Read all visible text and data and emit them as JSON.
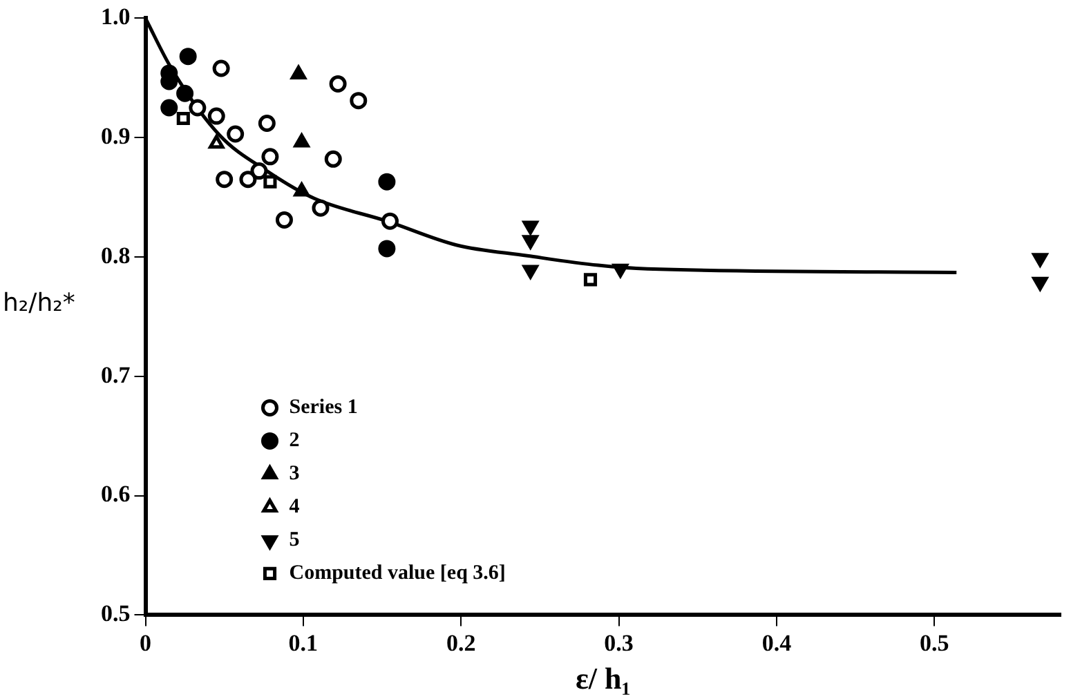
{
  "chart_data": {
    "type": "scatter",
    "xlabel": "ε/ h₁",
    "ylabel": "h₂/h₂*",
    "xlim": [
      0,
      0.58
    ],
    "xticks": [
      0,
      0.1,
      0.2,
      0.3,
      0.4,
      0.5
    ],
    "ylim": [
      0.5,
      1.0
    ],
    "yticks": [
      0.5,
      0.6,
      0.7,
      0.8,
      0.9,
      {
        "value": 1.0,
        "label": "1.0"
      }
    ],
    "grid": false,
    "legend": "bottom left",
    "series": [
      {
        "name": "Series 1",
        "color": "#ffffff",
        "marker": "circle",
        "x": [
          0.048,
          0.122,
          0.135,
          0.077,
          0.045,
          0.057,
          0.079,
          0.119,
          0.05,
          0.065,
          0.072,
          0.088,
          0.111,
          0.155,
          0.033
        ],
        "values": [
          0.958,
          0.945,
          0.931,
          0.912,
          0.918,
          0.903,
          0.884,
          0.882,
          0.865,
          0.865,
          0.872,
          0.831,
          0.841,
          0.83,
          0.925
        ]
      },
      {
        "name": "2",
        "color": "#000000",
        "marker": "circle",
        "x": [
          0.027,
          0.015,
          0.015,
          0.025,
          0.015,
          0.153,
          0.153
        ],
        "values": [
          0.968,
          0.954,
          0.947,
          0.937,
          0.925,
          0.863,
          0.807
        ]
      },
      {
        "name": "3",
        "color": "#000000",
        "marker": "triangle",
        "x": [
          0.097,
          0.099,
          0.099
        ],
        "values": [
          0.953,
          0.896,
          0.855
        ]
      },
      {
        "name": "4",
        "color": "#ffffff",
        "marker": "triangle",
        "x": [
          0.045
        ],
        "values": [
          0.895
        ]
      },
      {
        "name": "5",
        "color": "#000000",
        "marker": "triangle-down",
        "x": [
          0.244,
          0.244,
          0.244,
          0.301,
          0.567,
          0.567
        ],
        "values": [
          0.826,
          0.814,
          0.789,
          0.79,
          0.799,
          0.779
        ]
      },
      {
        "name": "Computed value [eq 3.6]",
        "color": "#ffffff",
        "marker": "square",
        "x": [
          0.024,
          0.079,
          0.282
        ],
        "values": [
          0.916,
          0.863,
          0.781
        ]
      },
      {
        "type": "line",
        "color": "#000000",
        "marker": "none",
        "x": [
          0,
          0.016,
          0.047,
          0.077,
          0.107,
          0.153,
          0.197,
          0.242,
          0.287,
          0.318,
          0.514
        ],
        "values": [
          1.0,
          0.959,
          0.902,
          0.872,
          0.849,
          0.83,
          0.81,
          0.801,
          0.793,
          0.79,
          0.787
        ]
      }
    ]
  }
}
